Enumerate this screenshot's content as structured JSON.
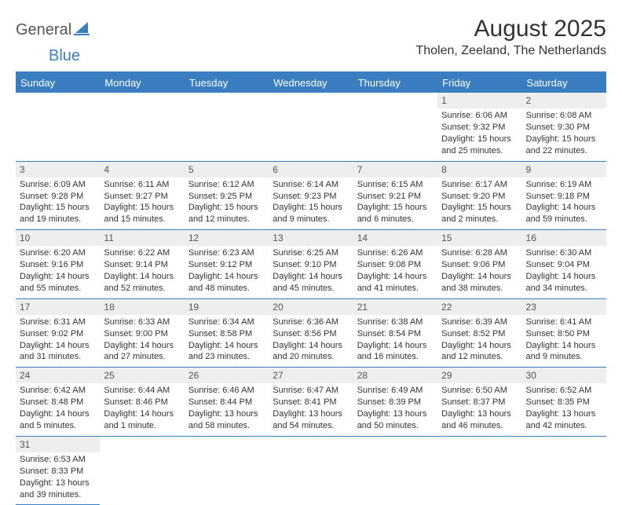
{
  "brand": {
    "textA": "General",
    "textB": "Blue"
  },
  "title": "August 2025",
  "location": "Tholen, Zeeland, The Netherlands",
  "colors": {
    "accent": "#3a7ec1",
    "headerText": "#ffffff",
    "dayNumBg": "#eeeeee",
    "text": "#333333"
  },
  "weekdays": [
    "Sunday",
    "Monday",
    "Tuesday",
    "Wednesday",
    "Thursday",
    "Friday",
    "Saturday"
  ],
  "grid": {
    "firstWeekdayIndex": 5,
    "daysInMonth": 31
  },
  "days": {
    "1": {
      "sunrise": "6:06 AM",
      "sunset": "9:32 PM",
      "daylight": "15 hours and 25 minutes."
    },
    "2": {
      "sunrise": "6:08 AM",
      "sunset": "9:30 PM",
      "daylight": "15 hours and 22 minutes."
    },
    "3": {
      "sunrise": "6:09 AM",
      "sunset": "9:28 PM",
      "daylight": "15 hours and 19 minutes."
    },
    "4": {
      "sunrise": "6:11 AM",
      "sunset": "9:27 PM",
      "daylight": "15 hours and 15 minutes."
    },
    "5": {
      "sunrise": "6:12 AM",
      "sunset": "9:25 PM",
      "daylight": "15 hours and 12 minutes."
    },
    "6": {
      "sunrise": "6:14 AM",
      "sunset": "9:23 PM",
      "daylight": "15 hours and 9 minutes."
    },
    "7": {
      "sunrise": "6:15 AM",
      "sunset": "9:21 PM",
      "daylight": "15 hours and 6 minutes."
    },
    "8": {
      "sunrise": "6:17 AM",
      "sunset": "9:20 PM",
      "daylight": "15 hours and 2 minutes."
    },
    "9": {
      "sunrise": "6:19 AM",
      "sunset": "9:18 PM",
      "daylight": "14 hours and 59 minutes."
    },
    "10": {
      "sunrise": "6:20 AM",
      "sunset": "9:16 PM",
      "daylight": "14 hours and 55 minutes."
    },
    "11": {
      "sunrise": "6:22 AM",
      "sunset": "9:14 PM",
      "daylight": "14 hours and 52 minutes."
    },
    "12": {
      "sunrise": "6:23 AM",
      "sunset": "9:12 PM",
      "daylight": "14 hours and 48 minutes."
    },
    "13": {
      "sunrise": "6:25 AM",
      "sunset": "9:10 PM",
      "daylight": "14 hours and 45 minutes."
    },
    "14": {
      "sunrise": "6:26 AM",
      "sunset": "9:08 PM",
      "daylight": "14 hours and 41 minutes."
    },
    "15": {
      "sunrise": "6:28 AM",
      "sunset": "9:06 PM",
      "daylight": "14 hours and 38 minutes."
    },
    "16": {
      "sunrise": "6:30 AM",
      "sunset": "9:04 PM",
      "daylight": "14 hours and 34 minutes."
    },
    "17": {
      "sunrise": "6:31 AM",
      "sunset": "9:02 PM",
      "daylight": "14 hours and 31 minutes."
    },
    "18": {
      "sunrise": "6:33 AM",
      "sunset": "9:00 PM",
      "daylight": "14 hours and 27 minutes."
    },
    "19": {
      "sunrise": "6:34 AM",
      "sunset": "8:58 PM",
      "daylight": "14 hours and 23 minutes."
    },
    "20": {
      "sunrise": "6:36 AM",
      "sunset": "8:56 PM",
      "daylight": "14 hours and 20 minutes."
    },
    "21": {
      "sunrise": "6:38 AM",
      "sunset": "8:54 PM",
      "daylight": "14 hours and 16 minutes."
    },
    "22": {
      "sunrise": "6:39 AM",
      "sunset": "8:52 PM",
      "daylight": "14 hours and 12 minutes."
    },
    "23": {
      "sunrise": "6:41 AM",
      "sunset": "8:50 PM",
      "daylight": "14 hours and 9 minutes."
    },
    "24": {
      "sunrise": "6:42 AM",
      "sunset": "8:48 PM",
      "daylight": "14 hours and 5 minutes."
    },
    "25": {
      "sunrise": "6:44 AM",
      "sunset": "8:46 PM",
      "daylight": "14 hours and 1 minute."
    },
    "26": {
      "sunrise": "6:46 AM",
      "sunset": "8:44 PM",
      "daylight": "13 hours and 58 minutes."
    },
    "27": {
      "sunrise": "6:47 AM",
      "sunset": "8:41 PM",
      "daylight": "13 hours and 54 minutes."
    },
    "28": {
      "sunrise": "6:49 AM",
      "sunset": "8:39 PM",
      "daylight": "13 hours and 50 minutes."
    },
    "29": {
      "sunrise": "6:50 AM",
      "sunset": "8:37 PM",
      "daylight": "13 hours and 46 minutes."
    },
    "30": {
      "sunrise": "6:52 AM",
      "sunset": "8:35 PM",
      "daylight": "13 hours and 42 minutes."
    },
    "31": {
      "sunrise": "6:53 AM",
      "sunset": "8:33 PM",
      "daylight": "13 hours and 39 minutes."
    }
  },
  "labels": {
    "sunrisePrefix": "Sunrise: ",
    "sunsetPrefix": "Sunset: ",
    "daylightPrefix": "Daylight: "
  }
}
